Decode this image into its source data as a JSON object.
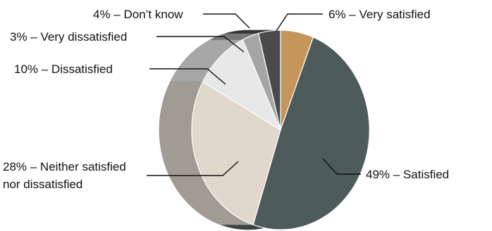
{
  "chart_data": {
    "type": "pie",
    "title": "",
    "slices": [
      {
        "name": "Very satisfied",
        "value": 6,
        "label": "6% – Very satisfied",
        "color": "#c4965a"
      },
      {
        "name": "Satisfied",
        "value": 49,
        "label": "49% – Satisfied",
        "color": "#4e5b5b"
      },
      {
        "name": "Neither satisfied nor dissatisfied",
        "value": 28,
        "label_lines": [
          "28% – Neither satisfied",
          "nor dissatisfied"
        ],
        "color": "#e0d8cc"
      },
      {
        "name": "Dissatisfied",
        "value": 10,
        "label": "10% – Dissatisfied",
        "color": "#e8e8e8"
      },
      {
        "name": "Very dissatisfied",
        "value": 3,
        "label": "3% – Very dissatisfied",
        "color": "#a5a5a5"
      },
      {
        "name": "Don't know",
        "value": 4,
        "label": "4% – Don’t know",
        "color": "#4a4a4d"
      }
    ],
    "legend": "none",
    "style": "3d-exploded-pie"
  }
}
